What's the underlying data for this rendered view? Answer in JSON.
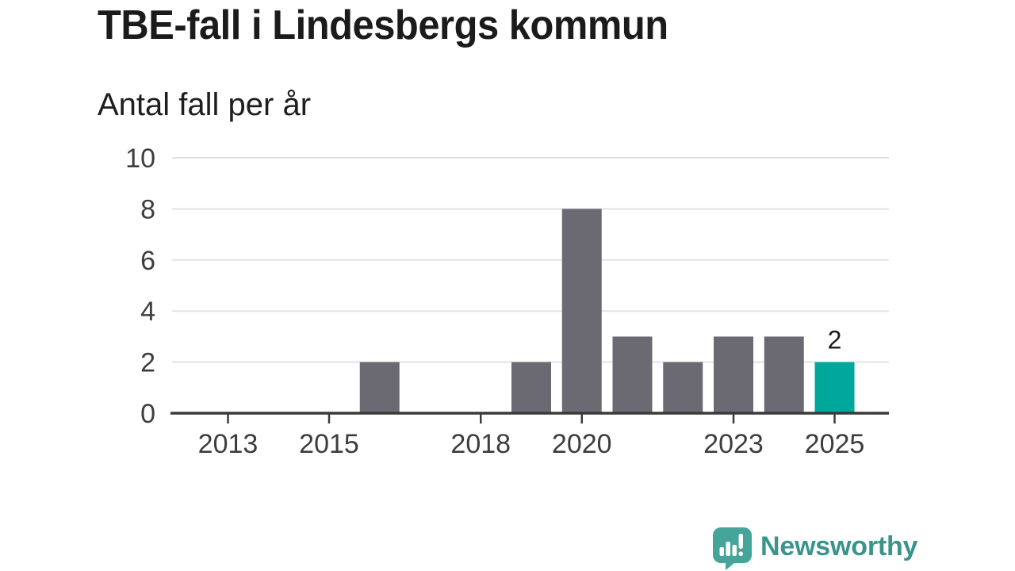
{
  "title": "TBE-fall i Lindesbergs kommun",
  "subtitle": "Antal fall per år",
  "chart_data": {
    "type": "bar",
    "categories": [
      2013,
      2014,
      2015,
      2016,
      2017,
      2018,
      2019,
      2020,
      2021,
      2022,
      2023,
      2024,
      2025
    ],
    "values": [
      0,
      0,
      0,
      2,
      0,
      0,
      2,
      8,
      3,
      2,
      3,
      3,
      2
    ],
    "title": "TBE-fall i Lindesbergs kommun",
    "subtitle": "Antal fall per år",
    "xlabel": "",
    "ylabel": "",
    "ylim": [
      0,
      10
    ],
    "yticks": [
      0,
      2,
      4,
      6,
      8,
      10
    ],
    "xticks": [
      2013,
      2015,
      2018,
      2020,
      2023,
      2025
    ],
    "grid": true,
    "legend": "none",
    "highlight_category": 2025,
    "data_labels": [
      {
        "category": 2025,
        "text": "2"
      }
    ]
  },
  "colors": {
    "bar_default": "#6b6a72",
    "bar_highlight": "#00a89b",
    "gridline": "#e3e3e3",
    "axis_line": "#3a3a3a",
    "tick_label": "#3d3d3d",
    "data_label": "#1a1a1a",
    "title_text": "#1b1b1b",
    "logo_teal": "#3a948c",
    "logo_icon_teal": "#45a59b"
  },
  "branding": {
    "wordmark": "Newsworthy",
    "icon": "newsworthy-speech-bubble-chart-icon"
  }
}
